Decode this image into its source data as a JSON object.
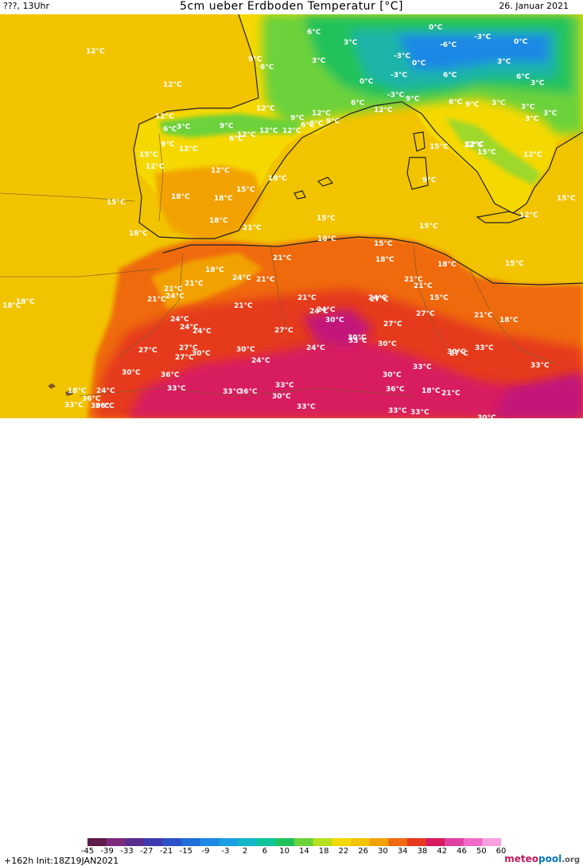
{
  "header": {
    "left_text": "???, 13Uhr",
    "title": "5cm ueber Erdboden Temperatur [°C]",
    "date": "26. Januar 2021"
  },
  "footer": {
    "run_info": "+162h  Init:18Z19JAN2021",
    "logo_part1": "meteo",
    "logo_part2": "pool",
    "logo_part3": ".org"
  },
  "colors": {
    "sea_15": "#f2c400",
    "land_12": "#f5d800",
    "warm_18": "#f2a200",
    "warm_24": "#ef6a10",
    "hot_30": "#e53a1e",
    "hot_36": "#d81b60",
    "hot_40": "#c2187a",
    "cold_6": "#6cd23a",
    "cold_3": "#22c25a",
    "cold_0": "#1ab4a8",
    "cold_m3": "#1e88e5"
  },
  "colorbar": {
    "ticks": [
      "-45",
      "-39",
      "-33",
      "-27",
      "-21",
      "-15",
      "-9",
      "-3",
      "2",
      "6",
      "10",
      "14",
      "18",
      "22",
      "26",
      "30",
      "34",
      "38",
      "42",
      "46",
      "50",
      "60"
    ]
  },
  "labels": [
    {
      "t": "12°C"
    },
    {
      "t": "12°C"
    },
    {
      "t": "6°C"
    },
    {
      "t": "3°C"
    },
    {
      "t": "0°C"
    },
    {
      "t": "-6°C"
    },
    {
      "t": "-3°C"
    },
    {
      "t": "0°C"
    },
    {
      "t": "9°C"
    },
    {
      "t": "6°C"
    },
    {
      "t": "3°C"
    },
    {
      "t": "-3°C"
    },
    {
      "t": "0°C"
    },
    {
      "t": "-3°C"
    },
    {
      "t": "3°C"
    },
    {
      "t": "0°C"
    },
    {
      "t": "-3°C"
    },
    {
      "t": "6°C"
    },
    {
      "t": "3°C"
    },
    {
      "t": "6°C"
    },
    {
      "t": "3°C"
    },
    {
      "t": "12°C"
    },
    {
      "t": "9°C"
    },
    {
      "t": "12°C"
    },
    {
      "t": "6°C"
    },
    {
      "t": "6°C"
    },
    {
      "t": "12°C"
    },
    {
      "t": "9°C"
    },
    {
      "t": "6°C"
    },
    {
      "t": "9°C"
    },
    {
      "t": "3°C"
    },
    {
      "t": "12°C"
    },
    {
      "t": "6°C"
    },
    {
      "t": "3°C"
    },
    {
      "t": "9°C"
    },
    {
      "t": "12°C"
    },
    {
      "t": "6°C"
    },
    {
      "t": "12°C"
    },
    {
      "t": "9°C"
    },
    {
      "t": "3°C"
    },
    {
      "t": "3°C"
    },
    {
      "t": "9°C"
    },
    {
      "t": "12°C"
    },
    {
      "t": "15°C"
    },
    {
      "t": "12°C"
    },
    {
      "t": "6°C"
    },
    {
      "t": "12°C"
    },
    {
      "t": "15°C"
    },
    {
      "t": "12°C"
    },
    {
      "t": "12°C"
    },
    {
      "t": "12°C"
    },
    {
      "t": "18°C"
    },
    {
      "t": "9°C"
    },
    {
      "t": "15°C"
    },
    {
      "t": "18°C"
    },
    {
      "t": "18°C"
    },
    {
      "t": "15°C"
    },
    {
      "t": "12°C"
    },
    {
      "t": "15°C"
    },
    {
      "t": "18°C"
    },
    {
      "t": "15°C"
    },
    {
      "t": "18°C"
    },
    {
      "t": "21°C"
    },
    {
      "t": "15°C"
    },
    {
      "t": "18°C"
    },
    {
      "t": "15°C"
    },
    {
      "t": "15°C"
    },
    {
      "t": "12°C"
    },
    {
      "t": "15°C"
    },
    {
      "t": "18°C"
    },
    {
      "t": "24°C"
    },
    {
      "t": "21°C"
    },
    {
      "t": "21°C"
    },
    {
      "t": "18°C"
    },
    {
      "t": "18°C"
    },
    {
      "t": "21°C"
    },
    {
      "t": "21°C"
    },
    {
      "t": "21°C"
    },
    {
      "t": "24°C"
    },
    {
      "t": "15°C"
    },
    {
      "t": "18°C"
    },
    {
      "t": "18°C"
    },
    {
      "t": "21°C"
    },
    {
      "t": "21°C"
    },
    {
      "t": "21°C"
    },
    {
      "t": "24°C"
    },
    {
      "t": "24°C"
    },
    {
      "t": "24°C"
    },
    {
      "t": "30°C"
    },
    {
      "t": "27°C"
    },
    {
      "t": "24°C"
    },
    {
      "t": "21°C"
    },
    {
      "t": "18°C"
    },
    {
      "t": "24°C"
    },
    {
      "t": "27°C"
    },
    {
      "t": "24°C"
    },
    {
      "t": "27°C"
    },
    {
      "t": "27°C"
    },
    {
      "t": "27°C"
    },
    {
      "t": "21°C"
    },
    {
      "t": "33°C"
    },
    {
      "t": "30°C"
    },
    {
      "t": "30°C"
    },
    {
      "t": "24°C"
    },
    {
      "t": "27°C"
    },
    {
      "t": "27°C"
    },
    {
      "t": "27°C"
    },
    {
      "t": "30°C"
    },
    {
      "t": "33°C"
    },
    {
      "t": "30°C"
    },
    {
      "t": "30°C"
    },
    {
      "t": "24°C"
    },
    {
      "t": "30°C"
    },
    {
      "t": "36°C"
    },
    {
      "t": "33°C"
    },
    {
      "t": "33°C"
    },
    {
      "t": "33°C"
    },
    {
      "t": "33°C"
    },
    {
      "t": "30°C"
    },
    {
      "t": "36°C"
    },
    {
      "t": "33°C"
    },
    {
      "t": "33°C"
    },
    {
      "t": "18°C"
    },
    {
      "t": "21°C"
    },
    {
      "t": "30°C"
    },
    {
      "t": "18°C"
    },
    {
      "t": "24°C"
    },
    {
      "t": "36°C"
    },
    {
      "t": "36°C"
    },
    {
      "t": "33°C"
    },
    {
      "t": "30°C"
    },
    {
      "t": "36°C"
    },
    {
      "t": "30°C"
    },
    {
      "t": "33°C"
    },
    {
      "t": "33°C"
    }
  ]
}
